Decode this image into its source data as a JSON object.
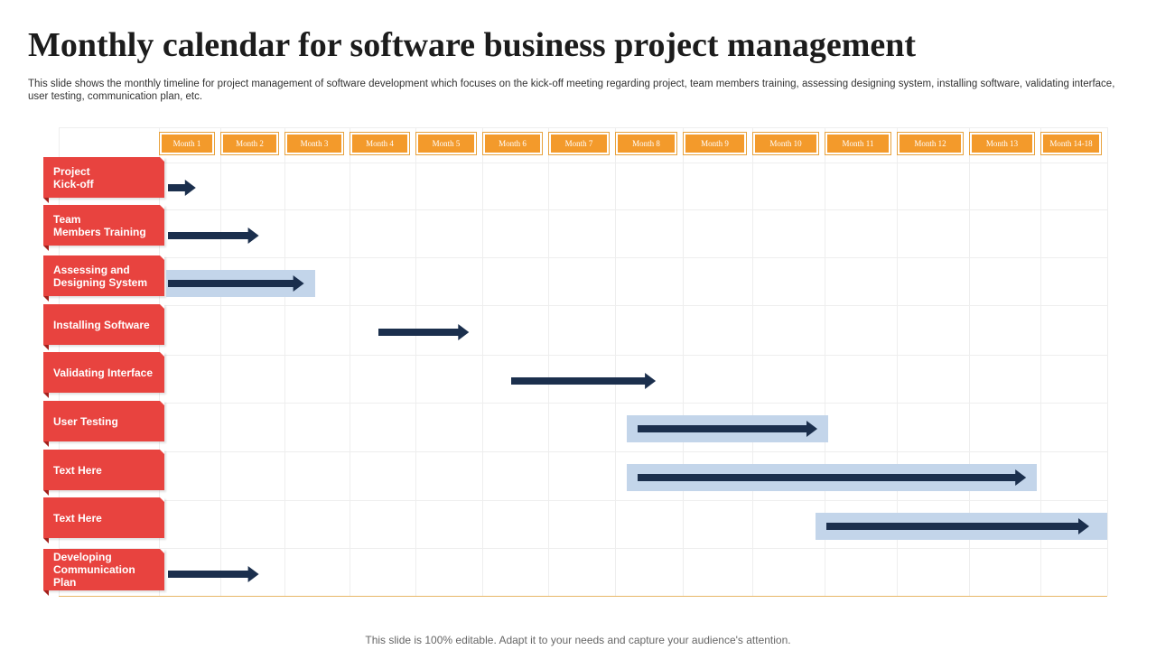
{
  "slide": {
    "title": "Monthly calendar for software business project management",
    "description": "This slide shows the monthly timeline for project management of software development which focuses on the kick-off meeting regarding project, team members training, assessing designing system, installing software, validating interface, user testing, communication plan, etc.",
    "footer": "This slide is 100% editable. Adapt it to your needs and capture your audience's attention."
  },
  "chart_data": {
    "type": "gantt",
    "months": [
      "Month 1",
      "Month 2",
      "Month 3",
      "Month 4",
      "Month 5",
      "Month 6",
      "Month 7",
      "Month 8",
      "Month 9",
      "Month 10",
      "Month 11",
      "Month 12",
      "Month 13",
      "Month 14-18"
    ],
    "tasks": [
      {
        "label": "Project\nKick-off",
        "start": 0,
        "end": 0.6,
        "highlight": false
      },
      {
        "label": "Team\nMembers Training",
        "start": 0,
        "end": 1.6,
        "highlight": false
      },
      {
        "label": "Assessing and\nDesigning  System",
        "start": 0,
        "end": 2.3,
        "highlight": true
      },
      {
        "label": "Installing  Software",
        "start": 3.3,
        "end": 4.8,
        "highlight": false
      },
      {
        "label": "Validating  Interface",
        "start": 5.3,
        "end": 7.6,
        "highlight": false
      },
      {
        "label": "User Testing",
        "start": 7.2,
        "end": 9.9,
        "highlight": true
      },
      {
        "label": "Text Here",
        "start": 7.2,
        "end": 12.8,
        "highlight": true
      },
      {
        "label": "Text Here",
        "start": 9.9,
        "end": 14,
        "highlight": true
      },
      {
        "label": "Developing\nCommunication\nPlan",
        "start": 0,
        "end": 1.6,
        "highlight": false
      }
    ],
    "colors": {
      "task_label": "#e8433f",
      "month_header": "#f39a2b",
      "arrow": "#1b2f4d",
      "highlight": "#c3d5ea"
    }
  }
}
